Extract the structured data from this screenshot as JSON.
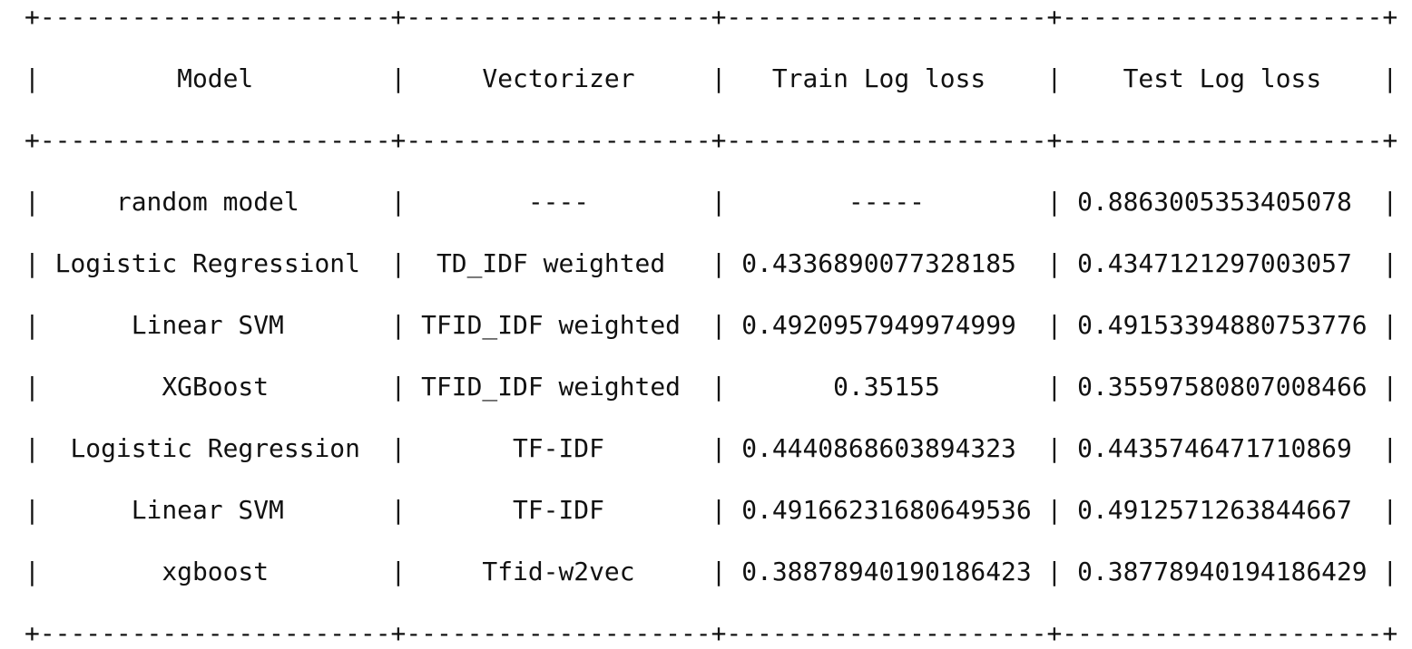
{
  "table": {
    "headers": [
      "Model",
      "Vectorizer",
      "Train Log loss",
      "Test Log loss"
    ],
    "rows": [
      [
        "random model",
        "----",
        "-----",
        "0.8863005353405078"
      ],
      [
        "Logistic Regressionl",
        "TD_IDF weighted",
        "0.4336890077328185",
        "0.4347121297003057"
      ],
      [
        "Linear SVM",
        "TFID_IDF weighted",
        "0.4920957949974999",
        "0.49153394880753776"
      ],
      [
        "XGBoost",
        "TFID_IDF weighted",
        "0.35155",
        "0.35597580807008466"
      ],
      [
        "Logistic Regression",
        "TF-IDF",
        "0.4440868603894323",
        "0.4435746471710869"
      ],
      [
        "Linear SVM",
        "TF-IDF",
        "0.49166231680649536",
        "0.4912571263844667"
      ],
      [
        "xgboost",
        "Tfid-w2vec",
        "0.38878940190186423",
        "0.38778940194186429"
      ]
    ]
  }
}
